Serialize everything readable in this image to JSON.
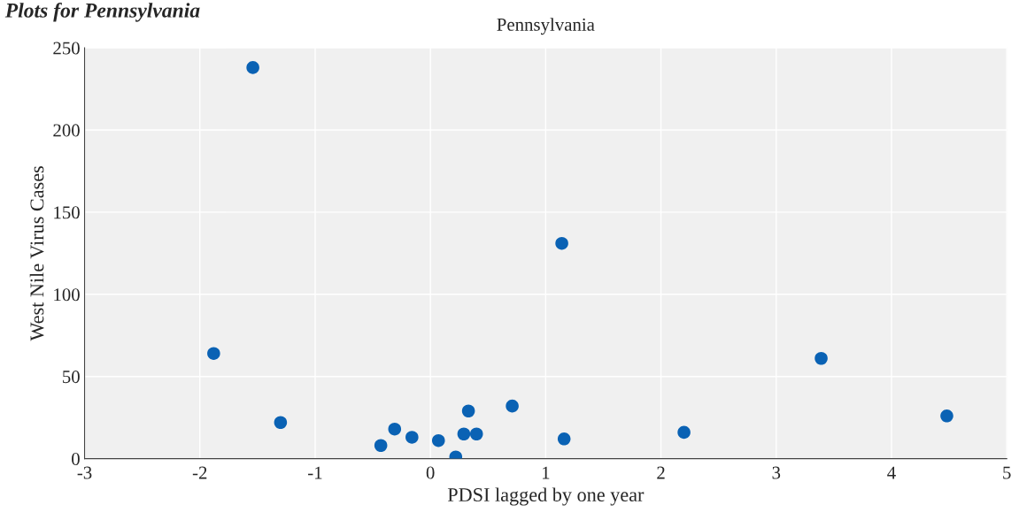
{
  "chart_data": {
    "type": "scatter",
    "title": "Pennsylvania",
    "xlabel": "PDSI lagged by one year",
    "ylabel": "West Nile Virus Cases",
    "annotations": [
      "Plots for Pennsylvania"
    ],
    "series": [
      {
        "color": "#0a62b4",
        "x": [
          -1.54,
          -1.88,
          -1.3,
          -0.43,
          -0.31,
          -0.16,
          0.07,
          0.22,
          0.29,
          0.4,
          0.33,
          0.71,
          1.14,
          1.16,
          2.2,
          3.39,
          4.48
        ],
        "values": [
          238,
          64,
          22,
          8,
          18,
          13,
          11,
          1,
          15,
          15,
          29,
          32,
          131,
          12,
          16,
          61,
          26
        ]
      }
    ],
    "xlim": [
      -3,
      5
    ],
    "xticks": [
      -3,
      -2,
      -1,
      0,
      1,
      2,
      3,
      4,
      5
    ],
    "ylim": [
      0,
      250
    ],
    "yticks": [
      0,
      50,
      100,
      150,
      200,
      250
    ],
    "grid": true,
    "marker": "circle",
    "legend": false
  }
}
